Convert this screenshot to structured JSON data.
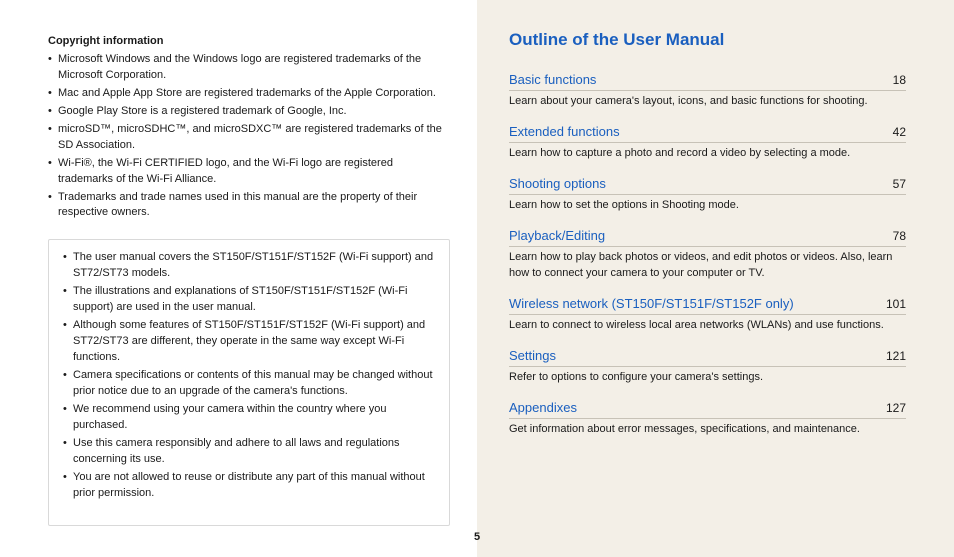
{
  "left": {
    "copyright_heading": "Copyright information",
    "copyright_items": [
      "Microsoft Windows and the Windows logo are registered trademarks of the Microsoft Corporation.",
      "Mac and Apple App Store are registered trademarks of the Apple Corporation.",
      "Google Play Store is a registered trademark of Google, Inc.",
      "microSD™, microSDHC™, and microSDXC™ are registered trademarks of the SD Association.",
      "Wi-Fi®, the Wi-Fi CERTIFIED logo, and the Wi-Fi logo are registered trademarks of the Wi-Fi Alliance.",
      "Trademarks and trade names used in this manual are the property of their respective owners."
    ],
    "notes_items": [
      "The user manual covers the ST150F/ST151F/ST152F (Wi-Fi support) and ST72/ST73 models.",
      "The illustrations and explanations of ST150F/ST151F/ST152F (Wi-Fi support) are used in the user manual.",
      "Although some features of ST150F/ST151F/ST152F (Wi-Fi support) and ST72/ST73 are different, they operate in the same way except Wi-Fi functions.",
      "Camera specifications or contents of this manual may be changed without prior notice due to an upgrade of the camera's functions.",
      "We recommend using your camera within the country where you purchased.",
      "Use this camera responsibly and adhere to all laws and regulations concerning its use.",
      "You are not allowed to reuse or distribute any part of this manual without prior permission."
    ]
  },
  "right": {
    "title": "Outline of the User Manual",
    "sections": [
      {
        "title": "Basic functions",
        "page": "18",
        "desc": "Learn about your camera's layout, icons, and basic functions for shooting."
      },
      {
        "title": "Extended functions",
        "page": "42",
        "desc": "Learn how to capture a photo and record a video by selecting a mode."
      },
      {
        "title": "Shooting options",
        "page": "57",
        "desc": "Learn how to set the options in Shooting mode."
      },
      {
        "title": "Playback/Editing",
        "page": "78",
        "desc": "Learn how to play back photos or videos, and edit photos or videos. Also, learn how to connect your camera to your computer or TV."
      },
      {
        "title": "Wireless network (ST150F/ST151F/ST152F only)",
        "page": "101",
        "desc": "Learn to connect to wireless local area networks (WLANs) and use functions."
      },
      {
        "title": "Settings",
        "page": "121",
        "desc": "Refer to options to configure your camera's settings."
      },
      {
        "title": "Appendixes",
        "page": "127",
        "desc": "Get information about error messages, specifications, and maintenance."
      }
    ]
  },
  "page_number": "5",
  "colors": {
    "link": "#1a5fbf",
    "text": "#1a1a1a",
    "right_bg": "#f3efe7",
    "divider": "#c7c2b7",
    "box_border": "#d9d9d9"
  }
}
